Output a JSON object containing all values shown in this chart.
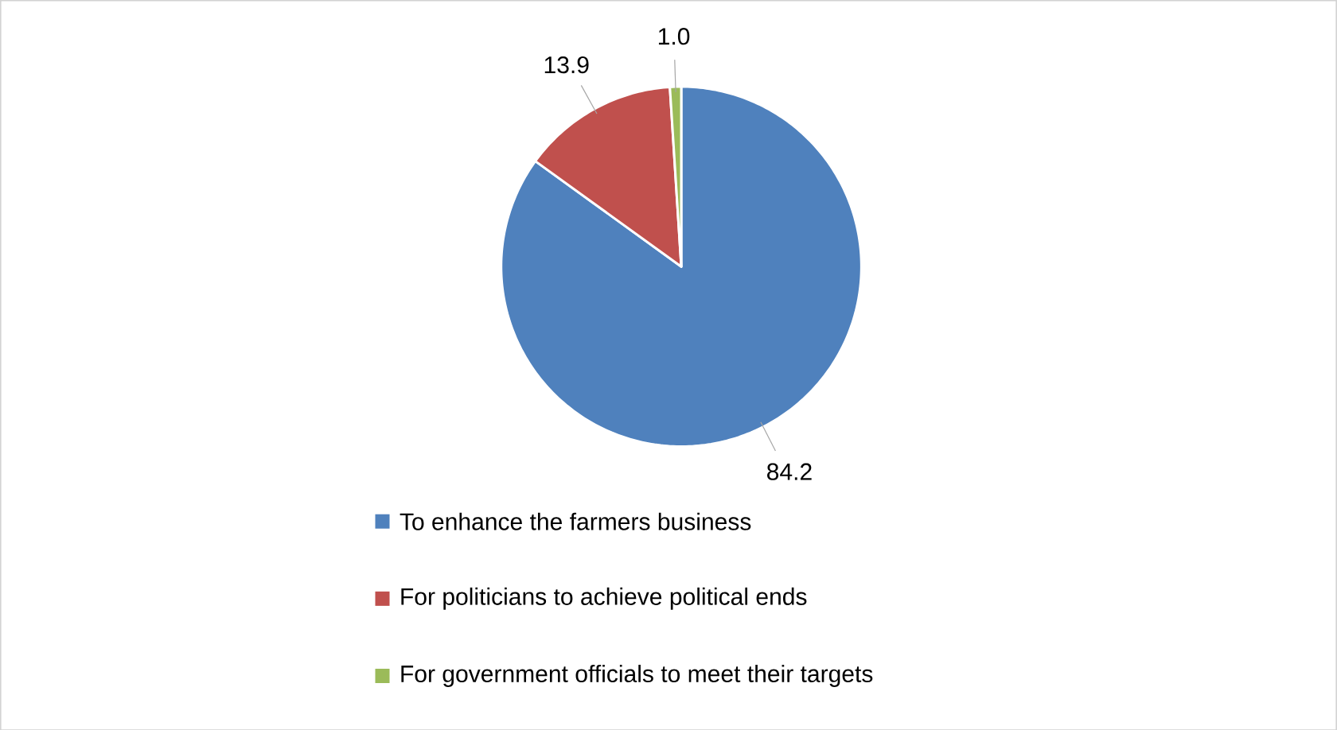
{
  "chart_data": {
    "type": "pie",
    "categories": [
      "To enhance the farmers business",
      "For politicians to achieve political ends",
      "For government officials to meet their targets"
    ],
    "values": [
      84.2,
      13.9,
      1.0
    ],
    "colors": [
      "#4f81bd",
      "#c0504d",
      "#9bbb59"
    ],
    "value_labels": [
      "84.2",
      "13.9",
      "1.0"
    ],
    "legend": "bottom"
  }
}
